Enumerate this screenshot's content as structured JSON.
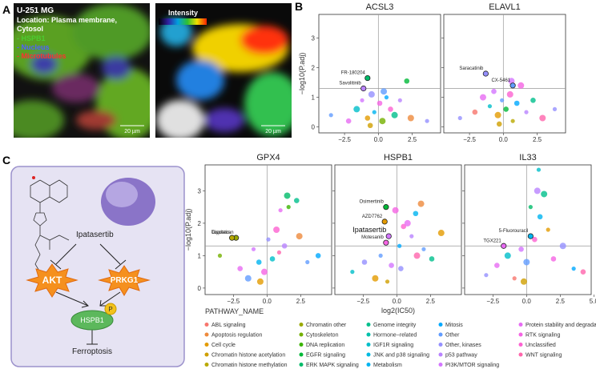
{
  "panel_labels": [
    "A",
    "B",
    "C"
  ],
  "microscopy": {
    "cell_line": "U-251 MG",
    "location_line1": "Location: Plasma membrane,",
    "location_line2": "Cytosol",
    "channels": [
      "- HSPB1",
      "- Nucleus",
      "- Microtubules"
    ],
    "scale_bar_left": "20 µm",
    "scale_bar_right": "20 µm",
    "colorbar_label": "Intensity"
  },
  "diagram": {
    "drug": "Ipatasertib",
    "targets": [
      "AKT",
      "PRKG1"
    ],
    "phospho": "P",
    "protein": "HSPB1",
    "outcome": "Ferroptosis"
  },
  "legend": {
    "title": "PATHWAY_NAME",
    "items": [
      {
        "name": "ABL signaling",
        "color": "#f8766d"
      },
      {
        "name": "Apoptosis regulation",
        "color": "#ee8a3c"
      },
      {
        "name": "Cell cycle",
        "color": "#e39b00"
      },
      {
        "name": "Chromatin histone acetylation",
        "color": "#cf9f00"
      },
      {
        "name": "Chromatin histone methylation",
        "color": "#b9a900"
      },
      {
        "name": "Chromatin other",
        "color": "#9aaa00"
      },
      {
        "name": "Cytoskeleton",
        "color": "#74b000"
      },
      {
        "name": "DNA replication",
        "color": "#3bb400"
      },
      {
        "name": "EGFR signaling",
        "color": "#00b938"
      },
      {
        "name": "ERK MAPK signaling",
        "color": "#00bb69"
      },
      {
        "name": "Genome integrity",
        "color": "#00bf8c"
      },
      {
        "name": "Hormone−related",
        "color": "#00c0ab"
      },
      {
        "name": "IGF1R signaling",
        "color": "#00bec9"
      },
      {
        "name": "JNK and p38 signaling",
        "color": "#00bae0"
      },
      {
        "name": "Metabolism",
        "color": "#00b4f0"
      },
      {
        "name": "Mitosis",
        "color": "#00a9ff"
      },
      {
        "name": "Other",
        "color": "#619cff"
      },
      {
        "name": "Other, kinases",
        "color": "#9590ff"
      },
      {
        "name": "p53 pathway",
        "color": "#b983ff"
      },
      {
        "name": "PI3K/MTOR signaling",
        "color": "#d376ff"
      },
      {
        "name": "Protein stability and degradation",
        "color": "#e76bf3"
      },
      {
        "name": "RTK signaling",
        "color": "#f564e3"
      },
      {
        "name": "Unclassified",
        "color": "#fd61d1"
      },
      {
        "name": "WNT signaling",
        "color": "#ff65ac"
      }
    ]
  },
  "chart_data": [
    {
      "type": "scatter",
      "title": "ACSL3",
      "y_label": "−log10(P.adj)",
      "xlim": [
        -4.4,
        4.6
      ],
      "ylim": [
        -0.2,
        3.8
      ],
      "xticks": [
        {
          "value": -2.5,
          "label": "−2.5"
        },
        {
          "value": 0,
          "label": "0.0"
        },
        2.5
      ],
      "yticks": [
        0,
        1,
        2,
        3
      ],
      "hline": 1.3,
      "vline": 0,
      "x": [
        -3.5,
        -2.2,
        -1.6,
        -1.2,
        -0.8,
        -0.5,
        -0.3,
        0.1,
        0.3,
        0.6,
        0.9,
        1.2,
        1.6,
        2.1,
        2.4,
        3.6,
        -0.6,
        0.4
      ],
      "y": [
        0.4,
        0.2,
        0.6,
        0.9,
        0.3,
        1.1,
        0.5,
        0.8,
        0.2,
        1.0,
        0.6,
        0.4,
        0.9,
        1.55,
        0.3,
        0.2,
        0.05,
        1.2
      ],
      "colors": [
        "#619cff",
        "#e76bf3",
        "#00bec9",
        "#d376ff",
        "#e39b00",
        "#9590ff",
        "#00b4f0",
        "#f564e3",
        "#74b000",
        "#00a9ff",
        "#fd61d1",
        "#00bf8c",
        "#b983ff",
        "#00b938",
        "#ee8a3c",
        "#9590ff",
        "#cf9f00",
        "#619cff"
      ],
      "annotations": [
        {
          "text": "FR-180204",
          "x": -0.8,
          "y": 1.65,
          "color": "#00bb69"
        },
        {
          "text": "Savolitinib",
          "x": -1.1,
          "y": 1.3,
          "color": "#b983ff"
        }
      ]
    },
    {
      "type": "scatter",
      "title": "ELAVL1",
      "xlim": [
        -4.4,
        4.6
      ],
      "ylim": [
        -0.2,
        3.8
      ],
      "xticks": [
        {
          "value": -2.5,
          "label": "−2.5"
        },
        {
          "value": 0,
          "label": "0.0"
        },
        2.5
      ],
      "yticks": [
        0,
        1,
        2,
        3
      ],
      "hline": 1.3,
      "vline": 0,
      "x": [
        -3.2,
        -2.1,
        -1.5,
        -1.0,
        -0.7,
        -0.4,
        -0.1,
        0.2,
        0.5,
        0.7,
        1.0,
        1.3,
        1.7,
        2.2,
        2.9,
        3.8,
        -0.3,
        0.6
      ],
      "y": [
        0.3,
        0.5,
        1.0,
        0.7,
        1.2,
        0.4,
        0.9,
        0.6,
        1.1,
        0.2,
        0.8,
        1.4,
        0.5,
        0.9,
        0.3,
        0.6,
        0.1,
        1.55
      ],
      "colors": [
        "#9590ff",
        "#f8766d",
        "#e76bf3",
        "#00bec9",
        "#d376ff",
        "#e39b00",
        "#619cff",
        "#00b938",
        "#fd61d1",
        "#b9a900",
        "#00a9ff",
        "#f564e3",
        "#b983ff",
        "#00bf8c",
        "#ff65ac",
        "#9590ff",
        "#cf9f00",
        "#d376ff"
      ],
      "annotations": [
        {
          "text": "Saracatinib",
          "x": -1.3,
          "y": 1.8,
          "color": "#9590ff"
        },
        {
          "text": "CX-5461",
          "x": 0.7,
          "y": 1.4,
          "color": "#619cff"
        }
      ]
    },
    {
      "type": "scatter",
      "title": "GPX4",
      "y_label": "−log10(P.adj)",
      "xlim": [
        -4.6,
        4.8
      ],
      "ylim": [
        -0.2,
        3.8
      ],
      "xticks": [
        {
          "value": -2.5,
          "label": "−2.5"
        },
        {
          "value": 0,
          "label": "0.0"
        },
        2.5
      ],
      "yticks": [
        0,
        1,
        2,
        3
      ],
      "hline": 1.3,
      "vline": 0,
      "x": [
        -3.5,
        -2.0,
        -1.4,
        -1.0,
        -0.6,
        -0.2,
        0.1,
        0.4,
        0.7,
        1.0,
        1.3,
        1.5,
        1.6,
        2.2,
        2.4,
        3.0,
        3.8,
        -0.5,
        0.9
      ],
      "y": [
        1.0,
        0.6,
        0.3,
        1.2,
        0.8,
        0.5,
        1.5,
        0.9,
        1.8,
        2.4,
        1.3,
        2.85,
        2.5,
        2.7,
        1.6,
        0.8,
        1.0,
        0.2,
        1.1
      ],
      "colors": [
        "#74b000",
        "#e76bf3",
        "#619cff",
        "#d376ff",
        "#00b4f0",
        "#f564e3",
        "#9590ff",
        "#00bec9",
        "#fd61d1",
        "#e76bf3",
        "#b983ff",
        "#00bb69",
        "#3bb400",
        "#00bf8c",
        "#ee8a3c",
        "#619cff",
        "#00a9ff",
        "#e39b00",
        "#ff65ac"
      ],
      "annotations": [
        {
          "text": "Topotecan",
          "x": -2.3,
          "y": 1.55,
          "color": "#9aaa00"
        },
        {
          "text": "Cisplatin",
          "x": -2.6,
          "y": 1.55,
          "color": "#b9a900"
        }
      ]
    },
    {
      "type": "scatter",
      "title": "HSPB1",
      "x_label": "log2(IC50)",
      "xlim": [
        -4.6,
        4.8
      ],
      "ylim": [
        -0.2,
        3.8
      ],
      "xticks": [
        {
          "value": -2.5,
          "label": "−2.5"
        },
        {
          "value": 0,
          "label": "0.0"
        },
        2.5
      ],
      "yticks": [
        0,
        1,
        2,
        3
      ],
      "hline": 1.3,
      "vline": 0,
      "x": [
        -3.3,
        -2.4,
        -1.6,
        -1.2,
        -0.4,
        -0.1,
        0.2,
        0.5,
        0.8,
        1.1,
        1.4,
        1.8,
        2.0,
        2.6,
        3.3,
        -0.7,
        0.3,
        1.5
      ],
      "y": [
        0.5,
        0.8,
        0.3,
        1.0,
        0.7,
        2.4,
        1.3,
        1.9,
        2.0,
        1.6,
        2.3,
        2.6,
        1.2,
        0.9,
        1.7,
        0.2,
        0.6,
        1.0
      ],
      "colors": [
        "#00bec9",
        "#9590ff",
        "#e39b00",
        "#619cff",
        "#d376ff",
        "#f564e3",
        "#00a9ff",
        "#fd61d1",
        "#e76bf3",
        "#b983ff",
        "#00b4f0",
        "#ee8a3c",
        "#619cff",
        "#00bf8c",
        "#e39b00",
        "#cf9f00",
        "#9590ff",
        "#ff65ac"
      ],
      "annotations": [
        {
          "text": "Osimertinib",
          "x": -0.8,
          "y": 2.5,
          "color": "#00b938"
        },
        {
          "text": "AZD7762",
          "x": -0.9,
          "y": 2.05,
          "color": "#e39b00"
        },
        {
          "text": "Ipatasertib",
          "x": -0.6,
          "y": 1.6,
          "color": "#d376ff"
        },
        {
          "text": "Motesanib",
          "x": -0.8,
          "y": 1.4,
          "color": "#f564e3"
        }
      ]
    },
    {
      "type": "scatter",
      "title": "IL33",
      "xlim": [
        -4.6,
        4.8
      ],
      "ylim": [
        -0.2,
        3.8
      ],
      "xticks": [
        {
          "value": -2.5,
          "label": "−2.5"
        },
        {
          "value": 0,
          "label": "0.0"
        },
        2.5,
        {
          "value": 5,
          "label": "5.0"
        }
      ],
      "yticks": [
        0,
        1,
        2,
        3
      ],
      "hline": 1.3,
      "vline": 0,
      "x": [
        -3.0,
        -2.2,
        -1.4,
        -0.9,
        -0.4,
        0.0,
        0.3,
        0.6,
        0.8,
        0.9,
        1.0,
        1.3,
        1.6,
        2.0,
        2.7,
        3.5,
        4.2,
        -0.2
      ],
      "y": [
        0.4,
        0.7,
        1.0,
        0.3,
        1.2,
        0.8,
        2.5,
        1.5,
        3.0,
        3.65,
        2.2,
        2.9,
        1.8,
        0.9,
        1.3,
        0.6,
        0.5,
        0.2
      ],
      "colors": [
        "#9590ff",
        "#e76bf3",
        "#00bec9",
        "#f8766d",
        "#d376ff",
        "#619cff",
        "#00bb69",
        "#fd61d1",
        "#b983ff",
        "#00bec9",
        "#00b4f0",
        "#00bf8c",
        "#e39b00",
        "#f564e3",
        "#9590ff",
        "#00a9ff",
        "#ff65ac",
        "#cf9f00"
      ],
      "annotations": [
        {
          "text": "5-Fluorouracil",
          "x": 0.3,
          "y": 1.6,
          "color": "#00b4f0"
        },
        {
          "text": "TGX221",
          "x": -1.7,
          "y": 1.3,
          "color": "#e76bf3"
        }
      ]
    }
  ]
}
